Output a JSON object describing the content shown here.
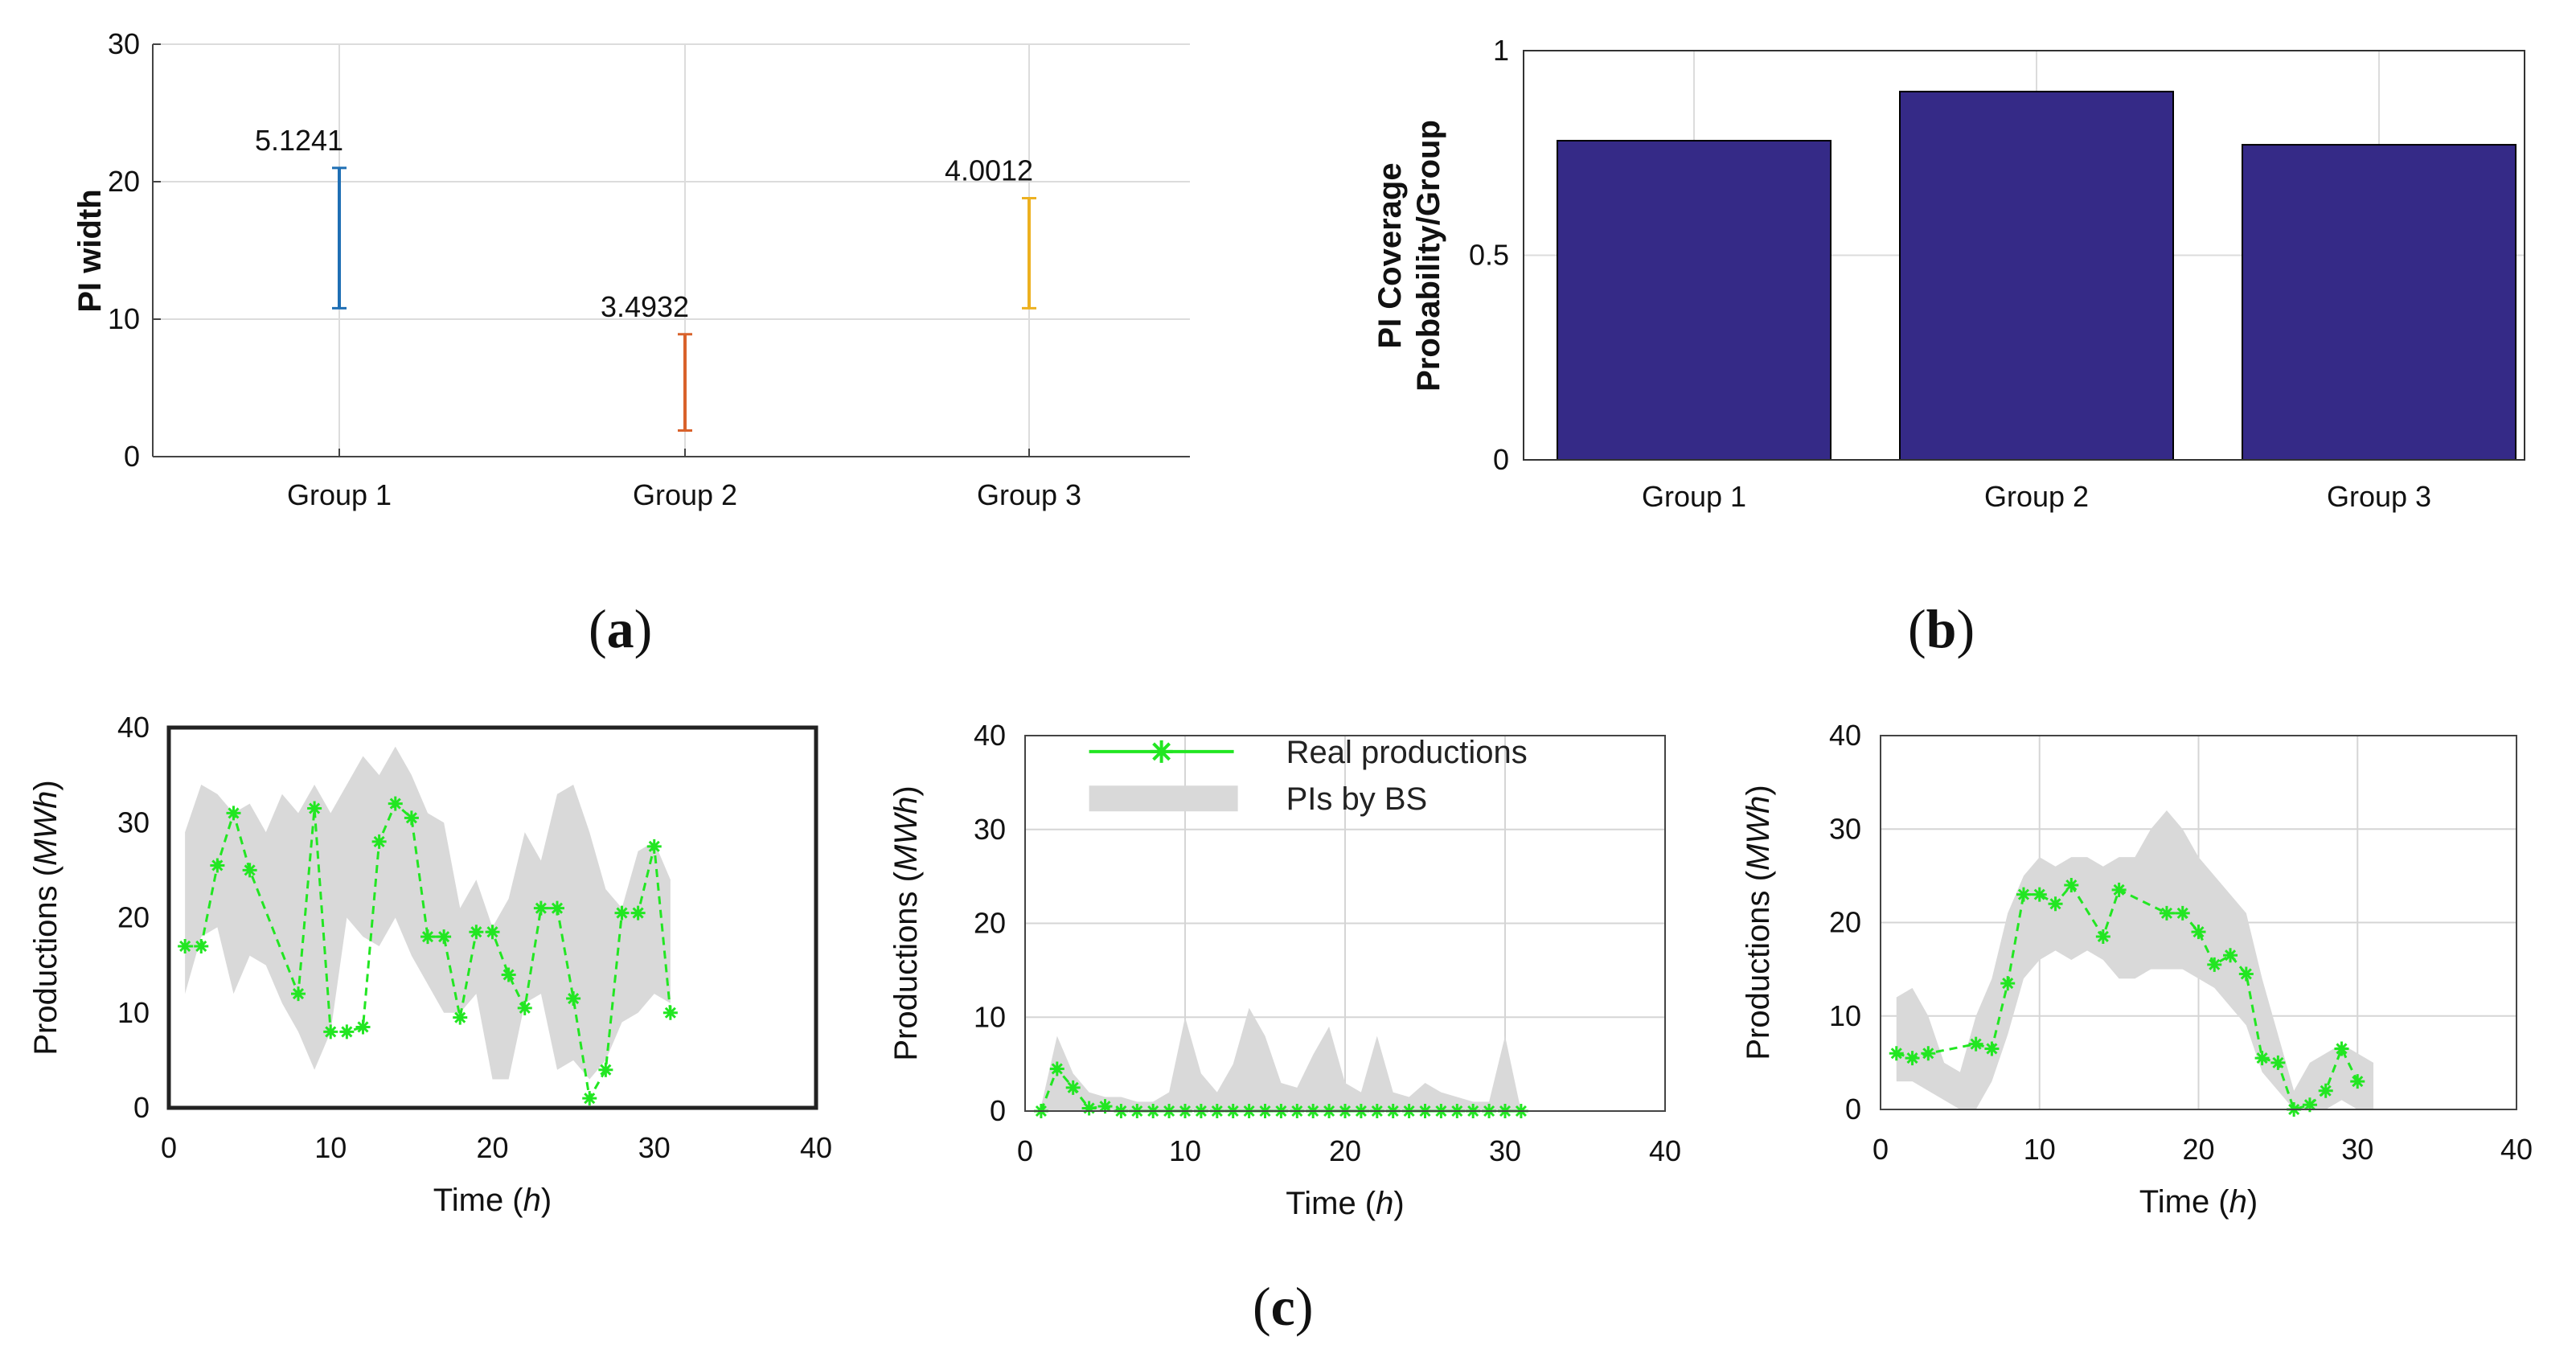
{
  "panels": {
    "a": {
      "open": "(",
      "letter": "a",
      "close": ")"
    },
    "b": {
      "open": "(",
      "letter": "b",
      "close": ")"
    },
    "c": {
      "open": "(",
      "letter": "c",
      "close": ")"
    }
  },
  "chart_data": [
    {
      "id": "a",
      "type": "errorbar",
      "ylabel": "PI width",
      "ylim": [
        0,
        30
      ],
      "yticks": [
        0,
        10,
        20,
        30
      ],
      "categories": [
        "Group 1",
        "Group 2",
        "Group 3"
      ],
      "series": [
        {
          "name": "Group 1",
          "low": 10.8,
          "high": 21.0,
          "label": "5.1241",
          "color": "#1f6fb4"
        },
        {
          "name": "Group 2",
          "low": 1.9,
          "high": 8.9,
          "label": "3.4932",
          "color": "#d9622b"
        },
        {
          "name": "Group 3",
          "low": 10.8,
          "high": 18.8,
          "label": "4.0012",
          "color": "#edb120"
        }
      ],
      "grid": true
    },
    {
      "id": "b",
      "type": "bar",
      "ylabel_lines": [
        "PI Coverage",
        "Probability/Group"
      ],
      "ylim": [
        0,
        1
      ],
      "yticks": [
        0,
        0.5,
        1
      ],
      "categories": [
        "Group 1",
        "Group 2",
        "Group 3"
      ],
      "values": [
        0.78,
        0.9,
        0.77
      ],
      "color": "#352a87",
      "grid": true
    },
    {
      "id": "c1",
      "type": "line",
      "xlabel": "Time",
      "xlabel_unit": "h",
      "ylabel": "Productions",
      "ylabel_unit": "MWh",
      "xlim": [
        0,
        40
      ],
      "ylim": [
        0,
        40
      ],
      "xticks": [
        0,
        10,
        20,
        30,
        40
      ],
      "yticks": [
        0,
        10,
        20,
        30,
        40
      ],
      "grid": false,
      "real": [
        [
          1,
          17
        ],
        [
          2,
          17
        ],
        [
          3,
          25.5
        ],
        [
          4,
          31
        ],
        [
          5,
          25
        ],
        [
          8,
          12
        ],
        [
          9,
          31.5
        ],
        [
          10,
          8
        ],
        [
          11,
          8
        ],
        [
          12,
          8.5
        ],
        [
          13,
          28
        ],
        [
          14,
          32
        ],
        [
          15,
          30.5
        ],
        [
          16,
          18
        ],
        [
          17,
          18
        ],
        [
          18,
          9.5
        ],
        [
          19,
          18.5
        ],
        [
          20,
          18.5
        ],
        [
          21,
          14
        ],
        [
          22,
          10.5
        ],
        [
          23,
          21
        ],
        [
          24,
          21
        ],
        [
          25,
          11.5
        ],
        [
          26,
          1
        ],
        [
          27,
          4
        ],
        [
          28,
          20.5
        ],
        [
          29,
          20.5
        ],
        [
          30,
          27.5
        ],
        [
          31,
          10
        ]
      ],
      "pi_upper": [
        [
          1,
          29
        ],
        [
          2,
          34
        ],
        [
          3,
          33
        ],
        [
          4,
          31
        ],
        [
          5,
          32
        ],
        [
          6,
          29
        ],
        [
          7,
          33
        ],
        [
          8,
          31
        ],
        [
          9,
          34
        ],
        [
          10,
          31
        ],
        [
          11,
          34
        ],
        [
          12,
          37
        ],
        [
          13,
          35
        ],
        [
          14,
          38
        ],
        [
          15,
          35
        ],
        [
          16,
          31
        ],
        [
          17,
          30
        ],
        [
          18,
          21
        ],
        [
          19,
          24
        ],
        [
          20,
          19
        ],
        [
          21,
          22
        ],
        [
          22,
          29
        ],
        [
          23,
          26
        ],
        [
          24,
          33
        ],
        [
          25,
          34
        ],
        [
          26,
          29
        ],
        [
          27,
          23
        ],
        [
          28,
          21
        ],
        [
          29,
          27
        ],
        [
          30,
          28
        ],
        [
          31,
          24
        ]
      ],
      "pi_lower": [
        [
          1,
          12
        ],
        [
          2,
          18
        ],
        [
          3,
          19
        ],
        [
          4,
          12
        ],
        [
          5,
          16
        ],
        [
          6,
          15
        ],
        [
          7,
          11
        ],
        [
          8,
          8
        ],
        [
          9,
          4
        ],
        [
          10,
          8
        ],
        [
          11,
          20
        ],
        [
          12,
          18
        ],
        [
          13,
          17
        ],
        [
          14,
          20
        ],
        [
          15,
          16
        ],
        [
          16,
          13
        ],
        [
          17,
          10
        ],
        [
          18,
          10
        ],
        [
          19,
          12
        ],
        [
          20,
          3
        ],
        [
          21,
          3
        ],
        [
          22,
          11
        ],
        [
          23,
          12
        ],
        [
          24,
          4
        ],
        [
          25,
          5
        ],
        [
          26,
          3
        ],
        [
          27,
          5
        ],
        [
          28,
          9
        ],
        [
          29,
          10
        ],
        [
          30,
          12
        ],
        [
          31,
          11
        ]
      ]
    },
    {
      "id": "c2",
      "type": "line",
      "xlabel": "Time",
      "xlabel_unit": "h",
      "ylabel": "Productions",
      "ylabel_unit": "MWh",
      "xlim": [
        0,
        40
      ],
      "ylim": [
        0,
        40
      ],
      "xticks": [
        0,
        10,
        20,
        30,
        40
      ],
      "yticks": [
        0,
        10,
        20,
        30,
        40
      ],
      "grid": true,
      "legend": {
        "position": "top",
        "entries": [
          "Real productions",
          "PIs by BS"
        ]
      },
      "real": [
        [
          1,
          0
        ],
        [
          2,
          4.5
        ],
        [
          3,
          2.5
        ],
        [
          4,
          0.3
        ],
        [
          5,
          0.5
        ],
        [
          6,
          0
        ],
        [
          7,
          0
        ],
        [
          8,
          0
        ],
        [
          9,
          0
        ],
        [
          10,
          0
        ],
        [
          11,
          0
        ],
        [
          12,
          0
        ],
        [
          13,
          0
        ],
        [
          14,
          0
        ],
        [
          15,
          0
        ],
        [
          16,
          0
        ],
        [
          17,
          0
        ],
        [
          18,
          0
        ],
        [
          19,
          0
        ],
        [
          20,
          0
        ],
        [
          21,
          0
        ],
        [
          22,
          0
        ],
        [
          23,
          0
        ],
        [
          24,
          0
        ],
        [
          25,
          0
        ],
        [
          26,
          0
        ],
        [
          27,
          0
        ],
        [
          28,
          0
        ],
        [
          29,
          0
        ],
        [
          30,
          0
        ],
        [
          31,
          0
        ]
      ],
      "pi_upper": [
        [
          1,
          0.5
        ],
        [
          2,
          8
        ],
        [
          3,
          4
        ],
        [
          4,
          2
        ],
        [
          5,
          1.5
        ],
        [
          6,
          1.5
        ],
        [
          7,
          1
        ],
        [
          8,
          1
        ],
        [
          9,
          2
        ],
        [
          10,
          10
        ],
        [
          11,
          4
        ],
        [
          12,
          2
        ],
        [
          13,
          5
        ],
        [
          14,
          11
        ],
        [
          15,
          8
        ],
        [
          16,
          3
        ],
        [
          17,
          2.5
        ],
        [
          18,
          6
        ],
        [
          19,
          9
        ],
        [
          20,
          3
        ],
        [
          21,
          2
        ],
        [
          22,
          8
        ],
        [
          23,
          2
        ],
        [
          24,
          1.5
        ],
        [
          25,
          3
        ],
        [
          26,
          2
        ],
        [
          27,
          1.5
        ],
        [
          28,
          1
        ],
        [
          29,
          1
        ],
        [
          30,
          8
        ],
        [
          31,
          0
        ]
      ],
      "pi_lower": [
        [
          1,
          0
        ],
        [
          31,
          0
        ]
      ]
    },
    {
      "id": "c3",
      "type": "line",
      "xlabel": "Time",
      "xlabel_unit": "h",
      "ylabel": "Productions",
      "ylabel_unit": "MWh",
      "xlim": [
        0,
        40
      ],
      "ylim": [
        0,
        40
      ],
      "xticks": [
        0,
        10,
        20,
        30,
        40
      ],
      "yticks": [
        0,
        10,
        20,
        30,
        40
      ],
      "grid": true,
      "real": [
        [
          1,
          6
        ],
        [
          2,
          5.5
        ],
        [
          3,
          6
        ],
        [
          6,
          7
        ],
        [
          7,
          6.5
        ],
        [
          8,
          13.5
        ],
        [
          9,
          23
        ],
        [
          10,
          23
        ],
        [
          11,
          22
        ],
        [
          12,
          24
        ],
        [
          14,
          18.5
        ],
        [
          15,
          23.5
        ],
        [
          18,
          21
        ],
        [
          19,
          21
        ],
        [
          20,
          19
        ],
        [
          21,
          15.5
        ],
        [
          22,
          16.5
        ],
        [
          23,
          14.5
        ],
        [
          24,
          5.5
        ],
        [
          25,
          5
        ],
        [
          26,
          0
        ],
        [
          27,
          0.5
        ],
        [
          28,
          2
        ],
        [
          29,
          6.5
        ],
        [
          30,
          3
        ]
      ],
      "pi_upper": [
        [
          1,
          12
        ],
        [
          2,
          13
        ],
        [
          3,
          10
        ],
        [
          4,
          5
        ],
        [
          5,
          4
        ],
        [
          6,
          10
        ],
        [
          7,
          14
        ],
        [
          8,
          21
        ],
        [
          9,
          25
        ],
        [
          10,
          27
        ],
        [
          11,
          26
        ],
        [
          12,
          27
        ],
        [
          13,
          27
        ],
        [
          14,
          26
        ],
        [
          15,
          27
        ],
        [
          16,
          27
        ],
        [
          17,
          30
        ],
        [
          18,
          32
        ],
        [
          19,
          30
        ],
        [
          20,
          27
        ],
        [
          21,
          25
        ],
        [
          22,
          23
        ],
        [
          23,
          21
        ],
        [
          24,
          14
        ],
        [
          25,
          8
        ],
        [
          26,
          2
        ],
        [
          27,
          5
        ],
        [
          28,
          6
        ],
        [
          29,
          7
        ],
        [
          30,
          6
        ],
        [
          31,
          5
        ]
      ],
      "pi_lower": [
        [
          1,
          3
        ],
        [
          2,
          3
        ],
        [
          3,
          2
        ],
        [
          4,
          1
        ],
        [
          5,
          0
        ],
        [
          6,
          0
        ],
        [
          7,
          3
        ],
        [
          8,
          8
        ],
        [
          9,
          14
        ],
        [
          10,
          16
        ],
        [
          11,
          17
        ],
        [
          12,
          16
        ],
        [
          13,
          17
        ],
        [
          14,
          16
        ],
        [
          15,
          14
        ],
        [
          16,
          14
        ],
        [
          17,
          15
        ],
        [
          18,
          15
        ],
        [
          19,
          15
        ],
        [
          20,
          14
        ],
        [
          21,
          13
        ],
        [
          22,
          11
        ],
        [
          23,
          9
        ],
        [
          24,
          4
        ],
        [
          25,
          2
        ],
        [
          26,
          0
        ],
        [
          27,
          0
        ],
        [
          28,
          0
        ],
        [
          29,
          1
        ],
        [
          30,
          0
        ],
        [
          31,
          0
        ]
      ]
    }
  ]
}
